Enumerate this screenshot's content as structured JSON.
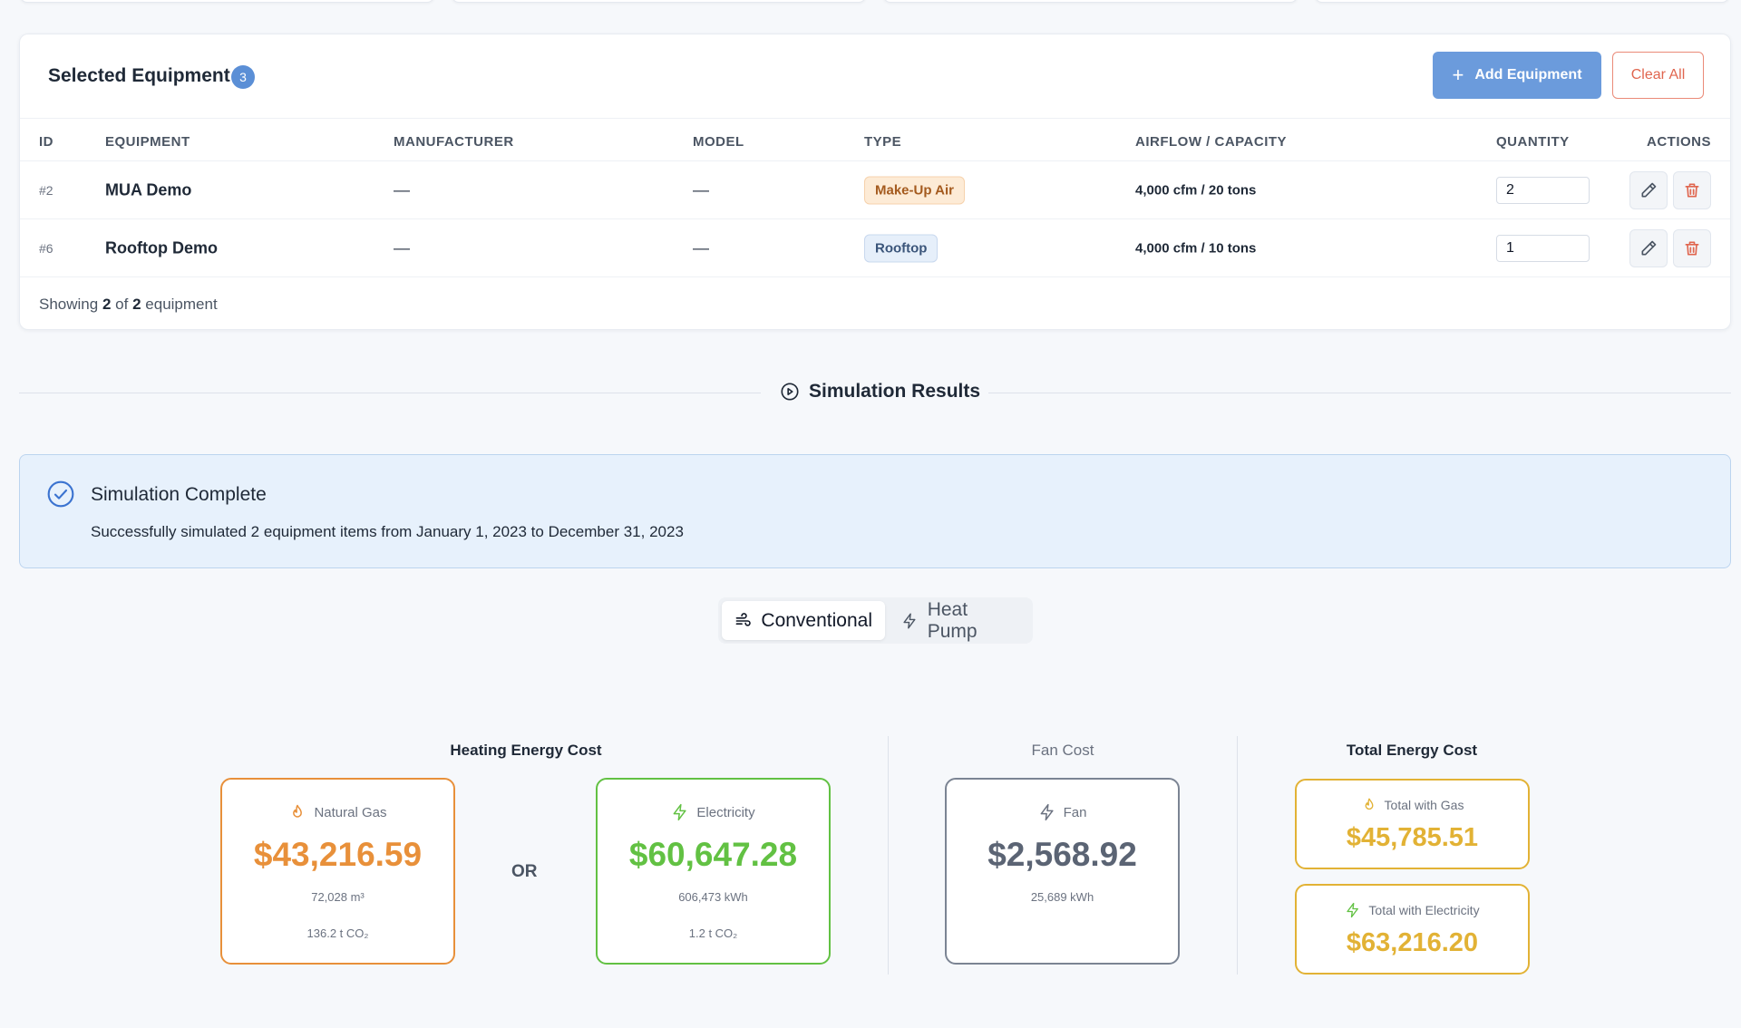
{
  "equipment": {
    "title": "Selected Equipment",
    "count": "3",
    "add_label": "Add Equipment",
    "clear_label": "Clear All",
    "columns": [
      "ID",
      "EQUIPMENT",
      "MANUFACTURER",
      "MODEL",
      "TYPE",
      "AIRFLOW / CAPACITY",
      "QUANTITY",
      "ACTIONS"
    ],
    "rows": [
      {
        "id": "#2",
        "name": "MUA Demo",
        "manufacturer": "—",
        "model": "—",
        "type": "Make-Up Air",
        "airflow": "4,000 cfm / 20 tons",
        "quantity": "2"
      },
      {
        "id": "#6",
        "name": "Rooftop Demo",
        "manufacturer": "—",
        "model": "—",
        "type": "Rooftop",
        "airflow": "4,000 cfm / 10 tons",
        "quantity": "1"
      }
    ],
    "showing_prefix": "Showing",
    "showing_count": "2",
    "showing_of": "of",
    "showing_total": "2",
    "showing_suffix": "equipment"
  },
  "simulation": {
    "section_label": "Simulation Results",
    "alert_title": "Simulation Complete",
    "alert_message": "Successfully simulated 2 equipment items from January 1, 2023 to December 31, 2023",
    "tabs": [
      {
        "label": "Conventional",
        "icon": "wind-icon",
        "active": true
      },
      {
        "label": "Heat Pump",
        "icon": "lightning-icon",
        "active": false
      }
    ]
  },
  "results": {
    "heating_title": "Heating Energy Cost",
    "or_label": "OR",
    "gas": {
      "label": "Natural Gas",
      "value": "$43,216.59",
      "usage": "72,028 m³",
      "co2": "136.2 t CO₂",
      "color": "#e8903a"
    },
    "electricity": {
      "label": "Electricity",
      "value": "$60,647.28",
      "usage": "606,473 kWh",
      "co2": "1.2 t CO₂",
      "color": "#62c143"
    },
    "fan_title": "Fan Cost",
    "fan": {
      "label": "Fan",
      "value": "$2,568.92",
      "usage": "25,689 kWh",
      "color": "#6b7280"
    },
    "total_title": "Total Energy Cost",
    "total_gas": {
      "label": "Total with Gas",
      "value": "$45,785.51",
      "color": "#e2b235"
    },
    "total_electricity": {
      "label": "Total with Electricity",
      "value": "$63,216.20",
      "color": "#e2b235"
    }
  },
  "colors": {
    "primary": "#6b9bdc",
    "danger": "#e0664f",
    "alert_bg": "#e7f1fc"
  }
}
